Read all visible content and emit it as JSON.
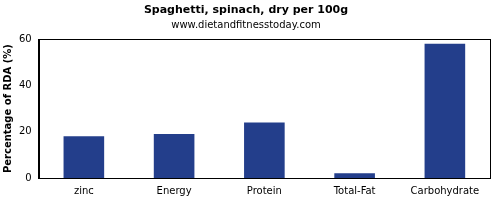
{
  "chart_data": {
    "type": "bar",
    "title": "Spaghetti, spinach, dry per 100g",
    "subtitle": "www.dietandfitnesstoday.com",
    "y_label": "Percentage of RDA (%)",
    "categories": [
      "zinc",
      "Energy",
      "Protein",
      "Total-Fat",
      "Carbohydrate"
    ],
    "values": [
      18,
      19,
      24,
      2,
      58
    ],
    "color": "#233e8b",
    "ylim": [
      0,
      60
    ],
    "yticks": [
      0,
      20,
      40,
      60
    ],
    "grid": false
  }
}
